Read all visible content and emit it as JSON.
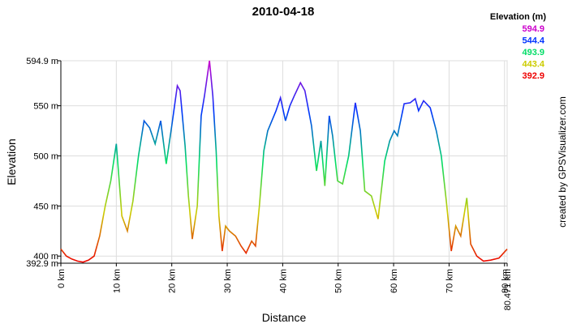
{
  "chart_data": {
    "type": "line",
    "title": "2010-04-18",
    "x_label": "Distance",
    "y_label": "Elevation",
    "credit": "created by GPSVisualizer.com",
    "legend": {
      "title": "Elevation (m)",
      "entries": [
        {
          "value": 594.9,
          "color": "#cc00cc"
        },
        {
          "value": 544.4,
          "color": "#0033ff"
        },
        {
          "value": 493.9,
          "color": "#00dd66"
        },
        {
          "value": 443.4,
          "color": "#cccc00"
        },
        {
          "value": 392.9,
          "color": "#ee0000"
        }
      ]
    },
    "x": [
      0,
      1,
      2,
      3,
      4,
      5,
      6,
      7,
      8,
      9,
      10,
      11,
      12,
      13,
      14,
      15,
      16,
      17,
      18,
      19,
      20,
      21,
      21.5,
      22.4,
      23,
      23.7,
      24.6,
      25.3,
      25.9,
      26.8,
      27.4,
      28,
      28.5,
      29.1,
      29.7,
      30.4,
      31.5,
      32.5,
      33.4,
      34.4,
      35.1,
      35.8,
      36.6,
      37.3,
      38.8,
      39.6,
      40.5,
      41.3,
      42.1,
      43.2,
      44,
      45.2,
      46.1,
      46.9,
      47.6,
      48.4,
      49,
      49.9,
      50.8,
      51.9,
      53.1,
      54,
      54.8,
      56,
      57.2,
      58.4,
      59.3,
      60.1,
      60.7,
      61.9,
      63,
      63.9,
      64.5,
      65.4,
      66.6,
      67.7,
      68.6,
      69.5,
      70.4,
      71.2,
      72.1,
      73.2,
      73.9,
      75,
      76.2,
      77.5,
      79,
      80.471
    ],
    "series": [
      {
        "name": "Elevation",
        "values": [
          407,
          400,
          397,
          395,
          394,
          396,
          400,
          420,
          450,
          475,
          512,
          440,
          425,
          455,
          500,
          535,
          528,
          512,
          535,
          492,
          530,
          570,
          565,
          510,
          460,
          417,
          450,
          540,
          560,
          594.9,
          560,
          505,
          440,
          405,
          430,
          425,
          420,
          410,
          403,
          415,
          410,
          450,
          505,
          525,
          545,
          558,
          535,
          550,
          560,
          573,
          565,
          530,
          485,
          515,
          470,
          540,
          520,
          475,
          472,
          500,
          553,
          525,
          465,
          460,
          437,
          495,
          515,
          525,
          520,
          552,
          553,
          557,
          545,
          555,
          548,
          525,
          500,
          455,
          405,
          430,
          420,
          458,
          412,
          400,
          395,
          396,
          398,
          407
        ]
      }
    ],
    "xlim": [
      0,
      80.471
    ],
    "ylim": [
      392.9,
      594.9
    ],
    "xticks": [
      {
        "value": 0,
        "label": "0 km"
      },
      {
        "value": 10,
        "label": "10 km"
      },
      {
        "value": 20,
        "label": "20 km"
      },
      {
        "value": 30,
        "label": "30 km"
      },
      {
        "value": 40,
        "label": "40 km"
      },
      {
        "value": 50,
        "label": "50 km"
      },
      {
        "value": 60,
        "label": "60 km"
      },
      {
        "value": 70,
        "label": "70 km"
      },
      {
        "value": 80,
        "label": "80 km"
      },
      {
        "value": 80.471,
        "label": "80.471 km"
      }
    ],
    "yticks": [
      {
        "value": 392.9,
        "label": "392.9 m"
      },
      {
        "value": 400,
        "label": "400 m"
      },
      {
        "value": 450,
        "label": "450 m"
      },
      {
        "value": 500,
        "label": "500 m"
      },
      {
        "value": 550,
        "label": "550 m"
      },
      {
        "value": 594.9,
        "label": "594.9 m"
      }
    ],
    "grid": true
  }
}
